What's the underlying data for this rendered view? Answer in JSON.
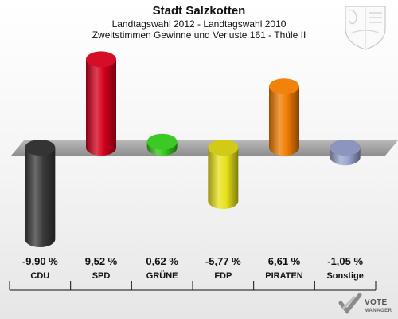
{
  "chart_data": {
    "type": "bar",
    "title": "Stadt Salzkotten",
    "subtitle_1": "Landtagswahl 2012 - Landtagswahl 2010",
    "subtitle_2": "Zweitstimmen Gewinne und Verluste 161 - Thüle II",
    "categories": [
      "CDU",
      "SPD",
      "GRÜNE",
      "FDP",
      "PIRATEN",
      "Sonstige"
    ],
    "values": [
      -9.9,
      9.52,
      0.62,
      -5.77,
      6.61,
      -1.05
    ],
    "value_labels": [
      "-9,90 %",
      "9,52 %",
      "0,62 %",
      "-5,77 %",
      "6,61 %",
      "-1,05 %"
    ],
    "colors": [
      "#3a3a3a",
      "#d4001c",
      "#33c61a",
      "#e8e21a",
      "#f07c00",
      "#9aa6d2"
    ],
    "ylim": [
      -10.5,
      10.5
    ],
    "grid": false,
    "legend": "none"
  },
  "branding": {
    "logo_main": "VOTE",
    "logo_sub": "MANAGER",
    "emblem_icon": "nrw-coat-of-arms-icon",
    "logo_icon": "vote-check-icon"
  }
}
